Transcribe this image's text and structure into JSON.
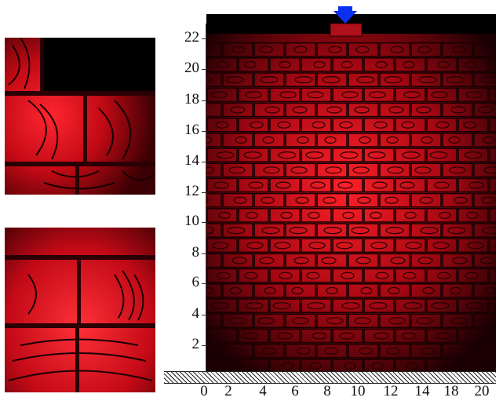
{
  "figure": {
    "y_axis_ticks": [
      "22",
      "20",
      "18",
      "16",
      "14",
      "12",
      "10",
      "8",
      "6",
      "4",
      "2"
    ],
    "x_axis_ticks": [
      "0",
      "2",
      "4",
      "6",
      "8",
      "10",
      "12",
      "14",
      "18",
      "20"
    ],
    "load_arrow_color": "#0b2ff0",
    "fringe_color": "#e0101a",
    "background_color": "#000000"
  }
}
